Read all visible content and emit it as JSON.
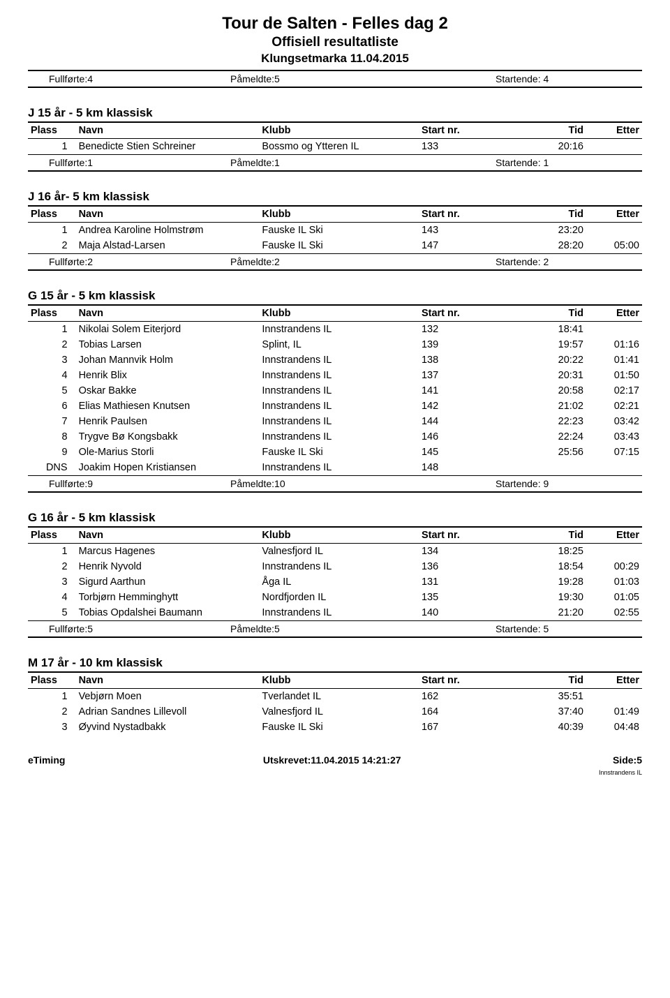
{
  "header": {
    "title": "Tour de Salten - Felles dag 2",
    "subtitle": "Offisiell resultatliste",
    "location": "Klungsetmarka 11.04.2015"
  },
  "top_summary": {
    "fullforte": "Fullførte:4",
    "pameldte": "Påmeldte:5",
    "startende": "Startende: 4"
  },
  "columns": {
    "plass": "Plass",
    "navn": "Navn",
    "klubb": "Klubb",
    "startnr": "Start nr.",
    "tid": "Tid",
    "etter": "Etter"
  },
  "sections": [
    {
      "title": "J 15 år - 5 km klassisk",
      "rows": [
        {
          "plass": "1",
          "navn": "Benedicte Stien Schreiner",
          "klubb": "Bossmo og Ytteren IL",
          "startnr": "133",
          "tid": "20:16",
          "etter": ""
        }
      ],
      "summary": {
        "fullforte": "Fullførte:1",
        "pameldte": "Påmeldte:1",
        "startende": "Startende: 1"
      }
    },
    {
      "title": "J 16 år- 5 km klassisk",
      "rows": [
        {
          "plass": "1",
          "navn": "Andrea Karoline Holmstrøm",
          "klubb": "Fauske IL Ski",
          "startnr": "143",
          "tid": "23:20",
          "etter": ""
        },
        {
          "plass": "2",
          "navn": "Maja Alstad-Larsen",
          "klubb": "Fauske IL Ski",
          "startnr": "147",
          "tid": "28:20",
          "etter": "05:00"
        }
      ],
      "summary": {
        "fullforte": "Fullførte:2",
        "pameldte": "Påmeldte:2",
        "startende": "Startende: 2"
      }
    },
    {
      "title": "G 15 år - 5 km klassisk",
      "rows": [
        {
          "plass": "1",
          "navn": "Nikolai Solem Eiterjord",
          "klubb": "Innstrandens IL",
          "startnr": "132",
          "tid": "18:41",
          "etter": ""
        },
        {
          "plass": "2",
          "navn": "Tobias Larsen",
          "klubb": "Splint, IL",
          "startnr": "139",
          "tid": "19:57",
          "etter": "01:16"
        },
        {
          "plass": "3",
          "navn": "Johan Mannvik Holm",
          "klubb": "Innstrandens IL",
          "startnr": "138",
          "tid": "20:22",
          "etter": "01:41"
        },
        {
          "plass": "4",
          "navn": "Henrik Blix",
          "klubb": "Innstrandens IL",
          "startnr": "137",
          "tid": "20:31",
          "etter": "01:50"
        },
        {
          "plass": "5",
          "navn": "Oskar Bakke",
          "klubb": "Innstrandens IL",
          "startnr": "141",
          "tid": "20:58",
          "etter": "02:17"
        },
        {
          "plass": "6",
          "navn": "Elias Mathiesen Knutsen",
          "klubb": "Innstrandens IL",
          "startnr": "142",
          "tid": "21:02",
          "etter": "02:21"
        },
        {
          "plass": "7",
          "navn": "Henrik Paulsen",
          "klubb": "Innstrandens IL",
          "startnr": "144",
          "tid": "22:23",
          "etter": "03:42"
        },
        {
          "plass": "8",
          "navn": "Trygve Bø Kongsbakk",
          "klubb": "Innstrandens IL",
          "startnr": "146",
          "tid": "22:24",
          "etter": "03:43"
        },
        {
          "plass": "9",
          "navn": "Ole-Marius Storli",
          "klubb": "Fauske IL Ski",
          "startnr": "145",
          "tid": "25:56",
          "etter": "07:15"
        },
        {
          "plass": "DNS",
          "navn": "Joakim Hopen Kristiansen",
          "klubb": "Innstrandens IL",
          "startnr": "148",
          "tid": "",
          "etter": ""
        }
      ],
      "summary": {
        "fullforte": "Fullførte:9",
        "pameldte": "Påmeldte:10",
        "startende": "Startende: 9"
      }
    },
    {
      "title": "G 16 år - 5 km klassisk",
      "rows": [
        {
          "plass": "1",
          "navn": "Marcus Hagenes",
          "klubb": "Valnesfjord IL",
          "startnr": "134",
          "tid": "18:25",
          "etter": ""
        },
        {
          "plass": "2",
          "navn": "Henrik Nyvold",
          "klubb": "Innstrandens IL",
          "startnr": "136",
          "tid": "18:54",
          "etter": "00:29"
        },
        {
          "plass": "3",
          "navn": "Sigurd Aarthun",
          "klubb": "Åga IL",
          "startnr": "131",
          "tid": "19:28",
          "etter": "01:03"
        },
        {
          "plass": "4",
          "navn": "Torbjørn Hemminghytt",
          "klubb": "Nordfjorden IL",
          "startnr": "135",
          "tid": "19:30",
          "etter": "01:05"
        },
        {
          "plass": "5",
          "navn": "Tobias Opdalshei Baumann",
          "klubb": "Innstrandens IL",
          "startnr": "140",
          "tid": "21:20",
          "etter": "02:55"
        }
      ],
      "summary": {
        "fullforte": "Fullførte:5",
        "pameldte": "Påmeldte:5",
        "startende": "Startende: 5"
      }
    },
    {
      "title": "M 17 år - 10 km klassisk",
      "rows": [
        {
          "plass": "1",
          "navn": "Vebjørn Moen",
          "klubb": "Tverlandet IL",
          "startnr": "162",
          "tid": "35:51",
          "etter": ""
        },
        {
          "plass": "2",
          "navn": "Adrian Sandnes Lillevoll",
          "klubb": "Valnesfjord IL",
          "startnr": "164",
          "tid": "37:40",
          "etter": "01:49"
        },
        {
          "plass": "3",
          "navn": "Øyvind Nystadbakk",
          "klubb": "Fauske IL Ski",
          "startnr": "167",
          "tid": "40:39",
          "etter": "04:48"
        }
      ],
      "summary": null
    }
  ],
  "footer": {
    "left": "eTiming",
    "center": "Utskrevet:11.04.2015 14:21:27",
    "side": "Side:5",
    "small": "Innstrandens IL"
  }
}
